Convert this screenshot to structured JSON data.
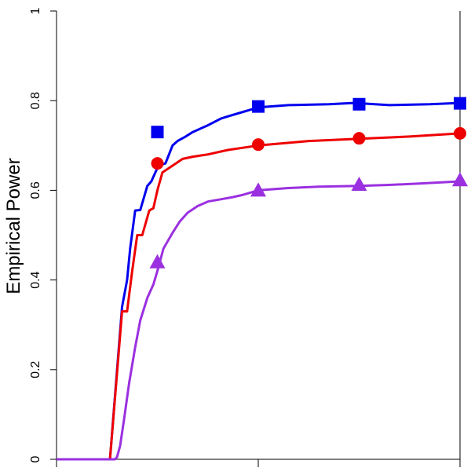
{
  "chart_data": {
    "type": "line",
    "title": "",
    "xlabel": "",
    "ylabel": "Empirical Power",
    "ylim": [
      0,
      1
    ],
    "y_ticks": [
      0,
      0.2,
      0.4,
      0.6,
      0.8,
      1
    ],
    "y_tick_labels": [
      "0",
      "0.2",
      "0.4",
      "0.6",
      "0.8",
      "1"
    ],
    "xlim": [
      0,
      40
    ],
    "x_ticks": [
      0,
      20,
      40
    ],
    "x_tick_labels": [
      "",
      "",
      ""
    ],
    "grid": false,
    "series": [
      {
        "color": "#0000ee",
        "marker": "square",
        "x": [
          0,
          5.3,
          6.5,
          7.0,
          7.3,
          7.8,
          8.3,
          9.0,
          9.4,
          10.1,
          10.8,
          11.5,
          12.0,
          12.8,
          13.5,
          15.0,
          16.3,
          17.0,
          18.5,
          20.0,
          23.0,
          27.0,
          29.5,
          33.0,
          37.0,
          40.0
        ],
        "y": [
          0,
          0,
          0.34,
          0.4,
          0.47,
          0.555,
          0.556,
          0.61,
          0.62,
          0.655,
          0.66,
          0.7,
          0.71,
          0.72,
          0.73,
          0.745,
          0.76,
          0.765,
          0.775,
          0.785,
          0.79,
          0.792,
          0.795,
          0.79,
          0.792,
          0.795
        ],
        "marker_x": [
          10,
          20,
          30,
          40
        ],
        "marker_y": [
          0.73,
          0.787,
          0.792,
          0.794
        ]
      },
      {
        "color": "#ee0000",
        "marker": "circle",
        "x": [
          0,
          5.3,
          6.5,
          7.0,
          7.5,
          8.0,
          8.5,
          9.2,
          9.6,
          10.0,
          10.5,
          11.5,
          12.5,
          13.5,
          15.0,
          17.0,
          20.0,
          25.0,
          30.0,
          35.0,
          40.0
        ],
        "y": [
          0,
          0,
          0.33,
          0.33,
          0.42,
          0.5,
          0.5,
          0.555,
          0.56,
          0.6,
          0.64,
          0.655,
          0.67,
          0.675,
          0.68,
          0.69,
          0.7,
          0.71,
          0.715,
          0.72,
          0.727
        ],
        "marker_x": [
          10,
          20,
          30,
          40
        ],
        "marker_y": [
          0.66,
          0.702,
          0.716,
          0.727
        ]
      },
      {
        "color": "#9b30e0",
        "marker": "triangle",
        "x": [
          0,
          5.8,
          6.0,
          6.3,
          6.7,
          7.2,
          7.8,
          8.3,
          9.0,
          9.6,
          10.0,
          10.6,
          11.5,
          12.2,
          13.0,
          14.0,
          15.0,
          16.3,
          17.5,
          18.5,
          20.0,
          23.0,
          26.0,
          30.0,
          33.0,
          36.0,
          40.0
        ],
        "y": [
          0,
          0,
          0.005,
          0.03,
          0.09,
          0.17,
          0.25,
          0.31,
          0.36,
          0.39,
          0.42,
          0.47,
          0.505,
          0.53,
          0.55,
          0.565,
          0.575,
          0.58,
          0.585,
          0.59,
          0.6,
          0.605,
          0.608,
          0.61,
          0.612,
          0.615,
          0.62
        ],
        "marker_x": [
          10,
          20,
          30,
          40
        ],
        "marker_y": [
          0.44,
          0.6,
          0.613,
          0.623
        ]
      }
    ]
  }
}
